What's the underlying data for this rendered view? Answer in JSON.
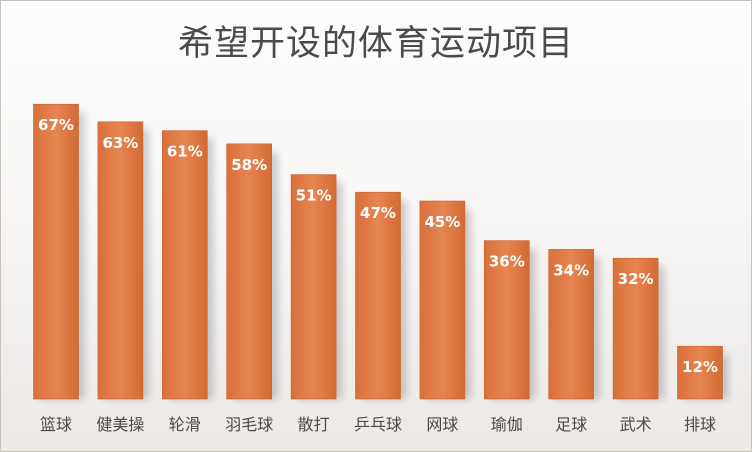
{
  "chart_data": {
    "type": "bar",
    "title": "希望开设的体育运动项目",
    "categories": [
      "篮球",
      "健美操",
      "轮滑",
      "羽毛球",
      "散打",
      "乒乓球",
      "网球",
      "瑜伽",
      "足球",
      "武术",
      "排球"
    ],
    "values": [
      67,
      63,
      61,
      58,
      51,
      47,
      45,
      36,
      34,
      32,
      12
    ],
    "value_format": "percent",
    "data_labels": [
      "67%",
      "63%",
      "61%",
      "58%",
      "51%",
      "47%",
      "45%",
      "36%",
      "34%",
      "32%",
      "12%"
    ],
    "ylim": [
      0,
      100
    ],
    "grid": false,
    "legend": "none",
    "bar_color": "#e07b45",
    "label_color": "#ffffff"
  }
}
